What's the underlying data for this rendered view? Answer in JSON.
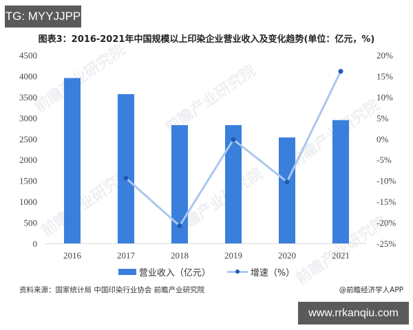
{
  "badges": {
    "top_left": "TG: MYYJJPP",
    "bottom_right": "www.rrkanqiu.com"
  },
  "title": "图表3：2016-2021年中国规模以上印染企业营业收入及变化趋势(单位：亿元，%)",
  "legend": {
    "bar_label": "营业收入（亿元）",
    "line_label": "增速（%）"
  },
  "footer": {
    "source": "资料来源：国家统计局 中国印染行业协会 前瞻产业研究院",
    "credit": "@前瞻经济学人APP"
  },
  "watermark": "前瞻产业研究院",
  "colors": {
    "bar": "#3a7fdc",
    "line": "#a9c8ec",
    "marker": "#1f5bb5",
    "axis_text": "#444444"
  },
  "chart_data": {
    "type": "bar+line",
    "title": "图表3：2016-2021年中国规模以上印染企业营业收入及变化趋势(单位：亿元，%)",
    "categories": [
      "2016",
      "2017",
      "2018",
      "2019",
      "2020",
      "2021"
    ],
    "series": [
      {
        "name": "营业收入（亿元）",
        "type": "bar",
        "axis": "left",
        "values": [
          3950,
          3565,
          2825,
          2825,
          2530,
          2945
        ]
      },
      {
        "name": "增速（%）",
        "type": "line",
        "axis": "right",
        "values": [
          null,
          -9.4,
          -20.8,
          -0.2,
          -10.3,
          16.1
        ]
      }
    ],
    "left_axis": {
      "ylim": [
        0,
        4500
      ],
      "ticks": [
        "0",
        "500",
        "1000",
        "1500",
        "2000",
        "2500",
        "3000",
        "3500",
        "4000",
        "4500"
      ]
    },
    "right_axis": {
      "ylim": [
        -25,
        20
      ],
      "ticks": [
        "-25%",
        "-20%",
        "-15%",
        "-10%",
        "-5%",
        "0%",
        "5%",
        "10%",
        "15%",
        "20%"
      ]
    },
    "xlabel": "",
    "ylabel": "",
    "grid": false,
    "legend_position": "bottom"
  }
}
